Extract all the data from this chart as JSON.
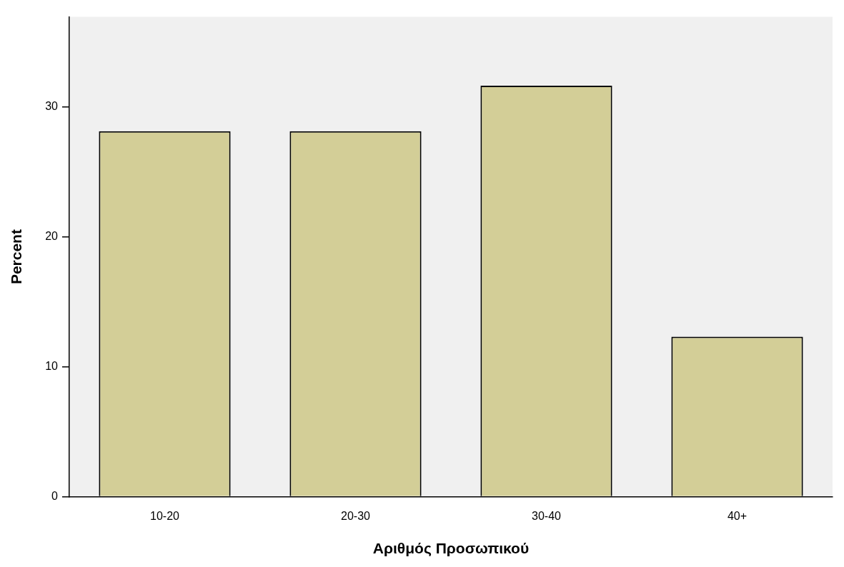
{
  "chart_data": {
    "type": "bar",
    "xlabel": "Αριθμός Προσωπικού",
    "ylabel": "Percent",
    "categories": [
      "10-20",
      "20-30",
      "30-40",
      "40+"
    ],
    "values": [
      28.1,
      28.1,
      31.6,
      12.3
    ],
    "color": "#d3ce97",
    "ylim": [
      0,
      36.9
    ],
    "yticks": [
      0,
      10,
      20,
      30
    ],
    "grid": false,
    "legend": false
  }
}
